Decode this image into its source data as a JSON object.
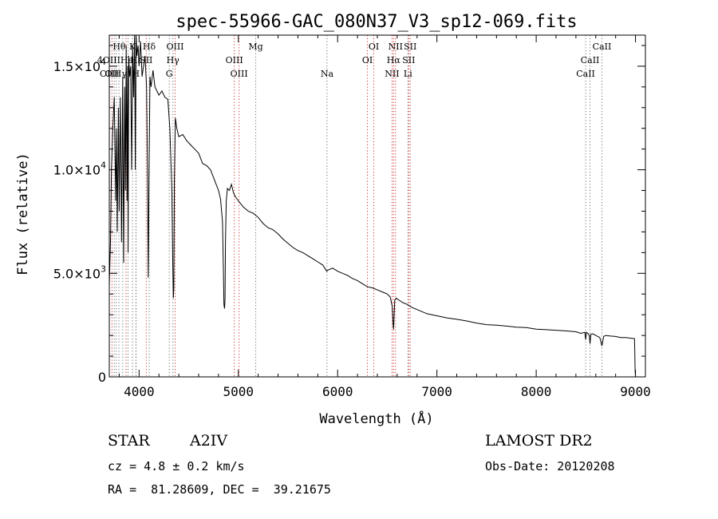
{
  "header": {
    "title": "spec-55966-GAC_080N37_V3_sp12-069.fits"
  },
  "info": {
    "object_class": "STAR",
    "subclass": "A2IV",
    "survey": "LAMOST DR2",
    "redshift_text": "cz = 4.8 ± 0.2 km/s",
    "obs_date_text": "Obs-Date: 20120208",
    "coords_text": "RA =  81.28609, DEC =  39.21675"
  },
  "chart_data": {
    "type": "line",
    "title": "spec-55966-GAC_080N37_V3_sp12-069.fits",
    "xlabel": "Wavelength (Å)",
    "ylabel": "Flux (relative)",
    "xlim": [
      3700,
      9100
    ],
    "ylim": [
      0,
      16500
    ],
    "x_ticks": [
      {
        "value": 4000,
        "label": "4000"
      },
      {
        "value": 5000,
        "label": "5000"
      },
      {
        "value": 6000,
        "label": "6000"
      },
      {
        "value": 7000,
        "label": "7000"
      },
      {
        "value": 8000,
        "label": "8000"
      },
      {
        "value": 9000,
        "label": "9000"
      }
    ],
    "y_ticks": [
      {
        "value": 0,
        "mant": "0",
        "exp": ""
      },
      {
        "value": 5000,
        "mant": "5.0×10",
        "exp": "3"
      },
      {
        "value": 10000,
        "mant": "1.0×10",
        "exp": "4"
      },
      {
        "value": 15000,
        "mant": "1.5×10",
        "exp": "4"
      }
    ],
    "grid": false,
    "series": [
      {
        "color": "#000000",
        "x": [
          3700,
          3712,
          3722,
          3735,
          3750,
          3765,
          3772,
          3780,
          3792,
          3800,
          3812,
          3823,
          3835,
          3845,
          3855,
          3862,
          3870,
          3878,
          3885,
          3890,
          3895,
          3905,
          3915,
          3925,
          3935,
          3945,
          3955,
          3962,
          3970,
          3978,
          3990,
          4000,
          4015,
          4030,
          4045,
          4060,
          4075,
          4085,
          4092,
          4102,
          4110,
          4120,
          4140,
          4160,
          4180,
          4200,
          4230,
          4260,
          4290,
          4310,
          4330,
          4340,
          4345,
          4350,
          4356,
          4365,
          4380,
          4400,
          4440,
          4480,
          4520,
          4560,
          4600,
          4640,
          4680,
          4720,
          4760,
          4800,
          4820,
          4840,
          4850,
          4855,
          4861,
          4866,
          4870,
          4878,
          4890,
          4910,
          4930,
          4950,
          4970,
          5000,
          5050,
          5100,
          5150,
          5200,
          5250,
          5300,
          5350,
          5400,
          5450,
          5500,
          5550,
          5600,
          5650,
          5700,
          5750,
          5800,
          5850,
          5890,
          5900,
          5950,
          6000,
          6050,
          6100,
          6150,
          6200,
          6250,
          6300,
          6350,
          6400,
          6450,
          6500,
          6530,
          6550,
          6558,
          6563,
          6568,
          6575,
          6590,
          6620,
          6650,
          6700,
          6750,
          6800,
          6850,
          6900,
          6950,
          7000,
          7100,
          7200,
          7300,
          7400,
          7500,
          7600,
          7700,
          7800,
          7900,
          8000,
          8100,
          8200,
          8300,
          8400,
          8450,
          8490,
          8498,
          8506,
          8520,
          8535,
          8542,
          8550,
          8570,
          8600,
          8640,
          8662,
          8680,
          8700,
          8750,
          8800,
          8850,
          8900,
          8950,
          8980,
          8990,
          8993,
          8996,
          9000
        ],
        "y": [
          4500,
          6500,
          10000,
          12000,
          13500,
          8500,
          12000,
          7000,
          13000,
          8000,
          13500,
          6500,
          14500,
          5500,
          14000,
          9000,
          16000,
          8500,
          15000,
          6000,
          15500,
          14500,
          15000,
          10000,
          16000,
          13500,
          17000,
          10000,
          16500,
          15500,
          16000,
          15000,
          16200,
          14500,
          15000,
          15500,
          14000,
          10000,
          4800,
          10500,
          14500,
          14000,
          14800,
          14000,
          13800,
          13600,
          13800,
          13500,
          13400,
          12000,
          9000,
          5300,
          3800,
          4300,
          9500,
          12500,
          12000,
          11600,
          11700,
          11400,
          11200,
          11000,
          10800,
          10300,
          10200,
          10000,
          9500,
          9000,
          8600,
          7500,
          5000,
          3500,
          3300,
          3800,
          6500,
          8500,
          9100,
          9000,
          9300,
          8900,
          8700,
          8500,
          8200,
          8000,
          7900,
          7700,
          7400,
          7200,
          7100,
          6900,
          6650,
          6450,
          6250,
          6100,
          6000,
          5850,
          5700,
          5550,
          5400,
          5100,
          5150,
          5250,
          5100,
          5000,
          4900,
          4750,
          4650,
          4500,
          4350,
          4300,
          4200,
          4100,
          4000,
          3850,
          3400,
          2600,
          2300,
          2800,
          3700,
          3800,
          3700,
          3600,
          3500,
          3350,
          3250,
          3150,
          3050,
          3000,
          2950,
          2850,
          2780,
          2700,
          2600,
          2520,
          2500,
          2450,
          2400,
          2380,
          2300,
          2280,
          2250,
          2220,
          2180,
          2100,
          2150,
          1800,
          2150,
          2100,
          2000,
          1600,
          2050,
          2080,
          2000,
          1900,
          1500,
          1950,
          2000,
          1970,
          1950,
          1900,
          1900,
          1870,
          1850,
          1850,
          1200,
          300,
          0
        ]
      }
    ],
    "line_markers": [
      {
        "x": 3727,
        "color": "#d03030",
        "label": "OII",
        "row": 2
      },
      {
        "x": 3750,
        "color": "#707070",
        "label": "",
        "row": -1
      },
      {
        "x": 3770,
        "color": "#707070",
        "label": "",
        "row": -1
      },
      {
        "x": 3797,
        "color": "#707070",
        "label": "",
        "row": -1
      },
      {
        "x": 3835,
        "color": "#707070",
        "label": "",
        "row": -1
      },
      {
        "x": 3869,
        "color": "#d03030",
        "label": "",
        "row": -1
      },
      {
        "x": 3889,
        "color": "#707070",
        "label": "",
        "row": -1
      },
      {
        "x": 3934,
        "color": "#707070",
        "label": "K",
        "row": 0
      },
      {
        "x": 3968,
        "color": "#707070",
        "label": "H",
        "row": 2
      },
      {
        "x": 3970,
        "color": "#707070",
        "label": "Hε",
        "row": 1
      },
      {
        "x": 4072,
        "color": "#d03030",
        "label": "SII",
        "row": 1
      },
      {
        "x": 4102,
        "color": "#707070",
        "label": "Hδ",
        "row": 0
      },
      {
        "x": 4304,
        "color": "#707070",
        "label": "G",
        "row": 2
      },
      {
        "x": 4341,
        "color": "#707070",
        "label": "Hγ",
        "row": 1
      },
      {
        "x": 4363,
        "color": "#d03030",
        "label": "OIII",
        "row": 0
      },
      {
        "x": 4959,
        "color": "#d03030",
        "label": "OIII",
        "row": 1
      },
      {
        "x": 5007,
        "color": "#d03030",
        "label": "OIII",
        "row": 2
      },
      {
        "x": 5175,
        "color": "#707070",
        "label": "Mg",
        "row": 0
      },
      {
        "x": 5893,
        "color": "#707070",
        "label": "Na",
        "row": 2
      },
      {
        "x": 6300,
        "color": "#d03030",
        "label": "OI",
        "row": 1
      },
      {
        "x": 6364,
        "color": "#d03030",
        "label": "OI",
        "row": 0
      },
      {
        "x": 6548,
        "color": "#d03030",
        "label": "NII",
        "row": 2
      },
      {
        "x": 6563,
        "color": "#d03030",
        "label": "Hα",
        "row": 1
      },
      {
        "x": 6583,
        "color": "#d03030",
        "label": "NII",
        "row": 0
      },
      {
        "x": 6708,
        "color": "#707070",
        "label": "Li",
        "row": 2
      },
      {
        "x": 6716,
        "color": "#d03030",
        "label": "SII",
        "row": 1
      },
      {
        "x": 6731,
        "color": "#d03030",
        "label": "SII",
        "row": 0
      },
      {
        "x": 8498,
        "color": "#707070",
        "label": "CaII",
        "row": 2
      },
      {
        "x": 8542,
        "color": "#707070",
        "label": "CaII",
        "row": 1
      },
      {
        "x": 8662,
        "color": "#707070",
        "label": "CaII",
        "row": 0
      }
    ],
    "crowded_labels": [
      {
        "x": 3740,
        "text": "OIIHγ",
        "row": 2
      },
      {
        "x": 3760,
        "text": "4OIIIHe",
        "row": 1
      },
      {
        "x": 3800,
        "text": "Hθ",
        "row": 0
      }
    ]
  }
}
